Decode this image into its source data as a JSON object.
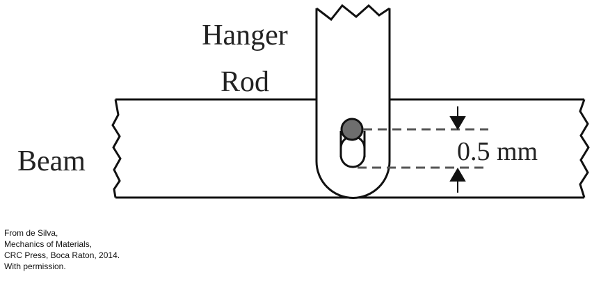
{
  "labels": {
    "hanger_line1": "Hanger",
    "hanger_line2": "Rod",
    "beam": "Beam",
    "dimension": "0.5 mm"
  },
  "credit": [
    "From de Silva,",
    "Mechanics of Materials,",
    "CRC Press, Boca Raton, 2014.",
    "With permission."
  ],
  "colors": {
    "line": "#111111",
    "dashed": "#555555",
    "pin_fill": "#6e6e6e"
  }
}
